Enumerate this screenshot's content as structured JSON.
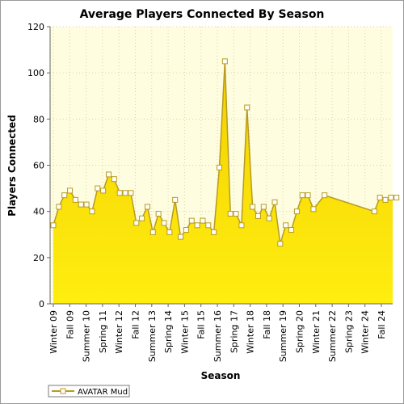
{
  "colors": {
    "plot_background": "#fffde0",
    "area_top": "#f2cf00",
    "area_bottom": "#ffee10",
    "line": "#b89a22",
    "marker_fill": "#ffffff",
    "grid": "#d9d3a2",
    "axis": "#666666"
  },
  "chart_data": {
    "type": "area",
    "title": "Average Players Connected By Season",
    "xlabel": "Season",
    "ylabel": "Players Connected",
    "ylim": [
      0,
      120
    ],
    "yticks": [
      0,
      20,
      40,
      60,
      80,
      100,
      120
    ],
    "grid": true,
    "legend_position": "bottom-left",
    "x_tick_labels": [
      "Winter 09",
      "Fall 09",
      "Summer 10",
      "Spring 11",
      "Winter 12",
      "Fall 12",
      "Summer 13",
      "Spring 14",
      "Winter 15",
      "Fall 15",
      "Summer 16",
      "Spring 17",
      "Winter 18",
      "Fall 18",
      "Summer 19",
      "Spring 20",
      "Winter 21",
      "Summer 22",
      "Spring 23",
      "Winter 24",
      "Fall 24"
    ],
    "series": [
      {
        "name": "AVATAR Mud",
        "points": [
          [
            0.0,
            34
          ],
          [
            0.5,
            42
          ],
          [
            1.0,
            47
          ],
          [
            1.5,
            49
          ],
          [
            2.0,
            45
          ],
          [
            2.5,
            43
          ],
          [
            3.0,
            43
          ],
          [
            3.5,
            40
          ],
          [
            4.0,
            50
          ],
          [
            4.5,
            49
          ],
          [
            5.0,
            56
          ],
          [
            5.5,
            54
          ],
          [
            6.0,
            48
          ],
          [
            6.5,
            48
          ],
          [
            7.0,
            48
          ],
          [
            7.5,
            35
          ],
          [
            8.0,
            37
          ],
          [
            8.5,
            42
          ],
          [
            9.0,
            31
          ],
          [
            9.5,
            39
          ],
          [
            10.0,
            35
          ],
          [
            10.5,
            31
          ],
          [
            11.0,
            45
          ],
          [
            11.5,
            29
          ],
          [
            12.0,
            32
          ],
          [
            12.5,
            36
          ],
          [
            13.0,
            34
          ],
          [
            13.5,
            36
          ],
          [
            14.0,
            34
          ],
          [
            14.5,
            31
          ],
          [
            15.0,
            59
          ],
          [
            15.5,
            105
          ],
          [
            16.0,
            39
          ],
          [
            16.5,
            39
          ],
          [
            17.0,
            34
          ],
          [
            17.5,
            85
          ],
          [
            18.0,
            42
          ],
          [
            18.5,
            38
          ],
          [
            19.0,
            42
          ],
          [
            19.5,
            37
          ],
          [
            20.0,
            44
          ],
          [
            20.5,
            26
          ],
          [
            21.0,
            34
          ],
          [
            21.5,
            32
          ],
          [
            22.0,
            40
          ],
          [
            22.5,
            47
          ],
          [
            23.0,
            47
          ],
          [
            23.5,
            41
          ],
          [
            24.5,
            47
          ],
          [
            29.0,
            40
          ],
          [
            29.5,
            46
          ],
          [
            30.0,
            45
          ],
          [
            30.5,
            46
          ],
          [
            31.0,
            46
          ]
        ]
      }
    ]
  }
}
